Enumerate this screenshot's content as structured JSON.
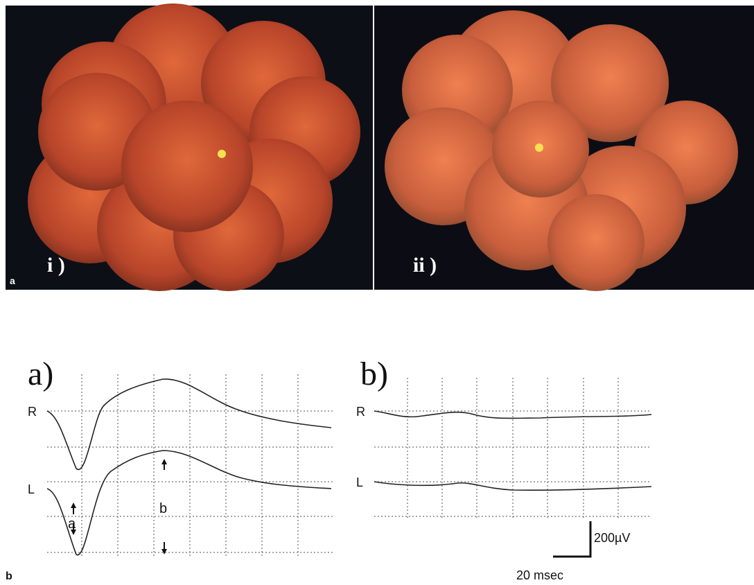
{
  "panel_a": {
    "label": "a",
    "images": [
      {
        "label": "i )"
      },
      {
        "label": "ii )"
      }
    ]
  },
  "panel_b": {
    "label": "b",
    "plots": [
      {
        "label": "a)",
        "traces": [
          "R",
          "L"
        ],
        "annotations": [
          "a",
          "b"
        ]
      },
      {
        "label": "b)",
        "traces": [
          "R",
          "L"
        ]
      }
    ],
    "scale_bar": {
      "amplitude": "200µV",
      "time": "20 msec"
    }
  }
}
